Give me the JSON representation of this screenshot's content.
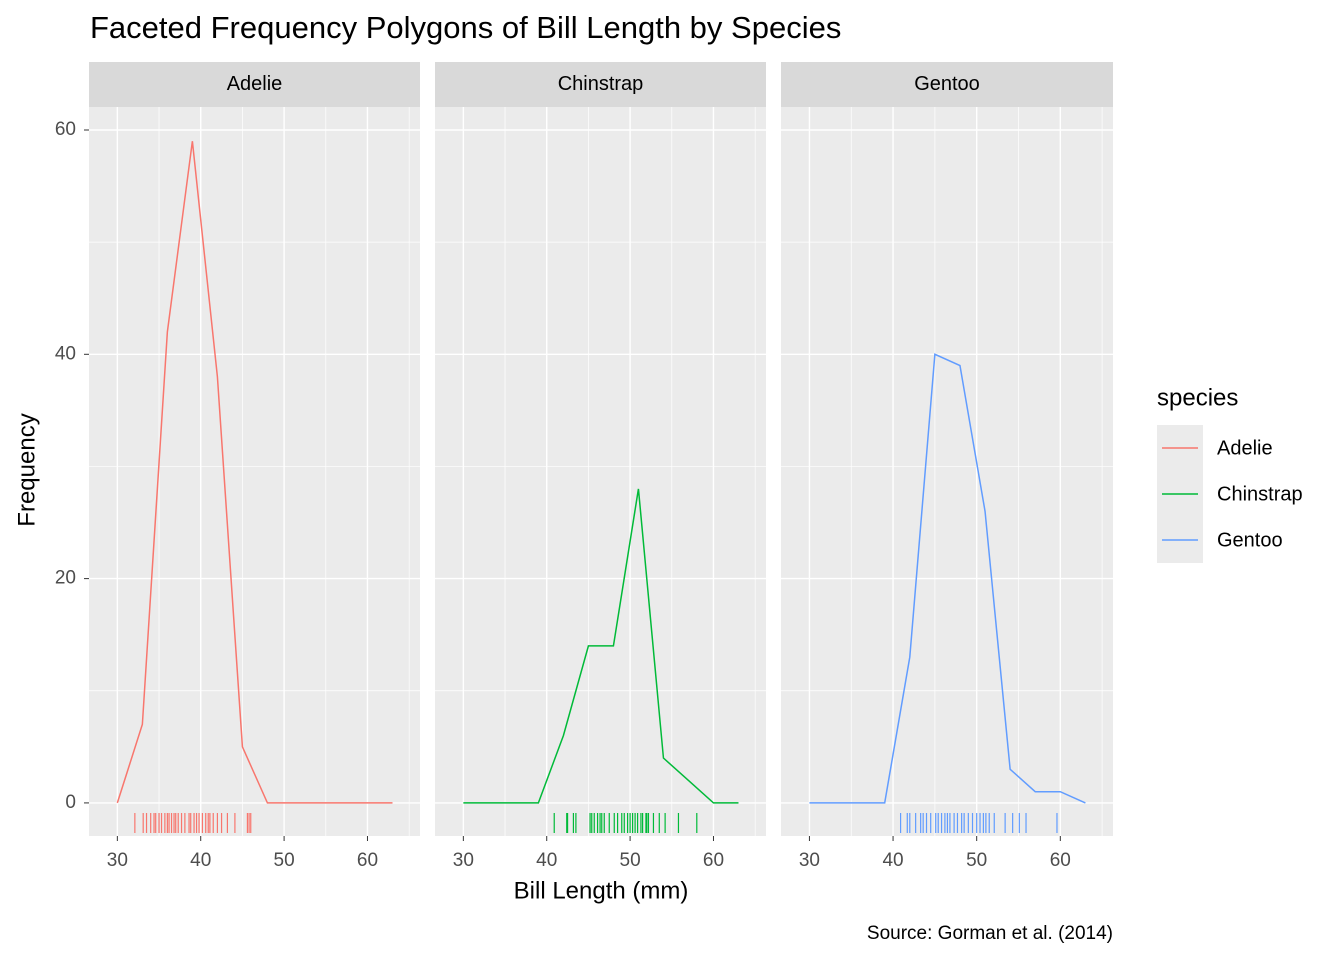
{
  "chart_data": {
    "type": "line",
    "title": "Faceted Frequency Polygons of Bill Length by Species",
    "xlabel": "Bill Length (mm)",
    "ylabel": "Frequency",
    "caption": "Source: Gorman et al. (2014)",
    "legend_title": "species",
    "legend": "right",
    "grid": true,
    "facet": true,
    "x": [
      30,
      33,
      36,
      39,
      42,
      45,
      48,
      51,
      54,
      57,
      60,
      63
    ],
    "series": [
      {
        "name": "Adelie",
        "color": "#F8766D",
        "values": [
          0,
          7,
          42,
          59,
          38,
          5,
          0,
          0,
          0,
          0,
          0,
          0
        ],
        "rug": [
          32.1,
          33.1,
          33.5,
          34.0,
          34.4,
          34.6,
          35.0,
          35.3,
          35.7,
          36.0,
          36.2,
          36.5,
          36.8,
          37.0,
          37.3,
          37.7,
          38.1,
          38.6,
          38.8,
          39.2,
          39.5,
          39.8,
          40.2,
          40.6,
          40.9,
          41.1,
          41.5,
          42.0,
          42.5,
          43.2,
          44.1,
          45.6,
          45.8,
          46.0
        ]
      },
      {
        "name": "Chinstrap",
        "color": "#00BA38",
        "values": [
          0,
          0,
          0,
          0,
          6,
          14,
          14,
          28,
          4,
          2,
          0,
          0
        ],
        "rug": [
          40.9,
          42.4,
          42.5,
          43.2,
          43.5,
          45.2,
          45.4,
          45.7,
          46.1,
          46.4,
          46.6,
          46.9,
          47.5,
          48.1,
          48.5,
          49.0,
          49.3,
          49.7,
          50.0,
          50.3,
          50.6,
          50.9,
          51.3,
          51.5,
          51.9,
          52.0,
          52.2,
          52.8,
          53.5,
          54.2,
          55.8,
          58.0
        ]
      },
      {
        "name": "Gentoo",
        "color": "#619CFF",
        "values": [
          0,
          0,
          0,
          0,
          13,
          40,
          39,
          26,
          3,
          1,
          1,
          0
        ],
        "rug": [
          40.9,
          41.7,
          42.0,
          42.7,
          43.3,
          43.6,
          44.0,
          44.5,
          45.1,
          45.4,
          45.8,
          46.2,
          46.5,
          46.8,
          47.3,
          47.7,
          48.2,
          48.5,
          49.0,
          49.5,
          50.0,
          50.4,
          50.8,
          51.1,
          51.5,
          52.1,
          53.4,
          54.3,
          55.1,
          55.9,
          59.6
        ]
      }
    ],
    "xlim": [
      26.6,
      66.3
    ],
    "xticks": [
      30,
      40,
      50,
      60
    ],
    "ylim": [
      -2.95,
      62.05
    ],
    "yticks": [
      0,
      20,
      40,
      60
    ]
  }
}
